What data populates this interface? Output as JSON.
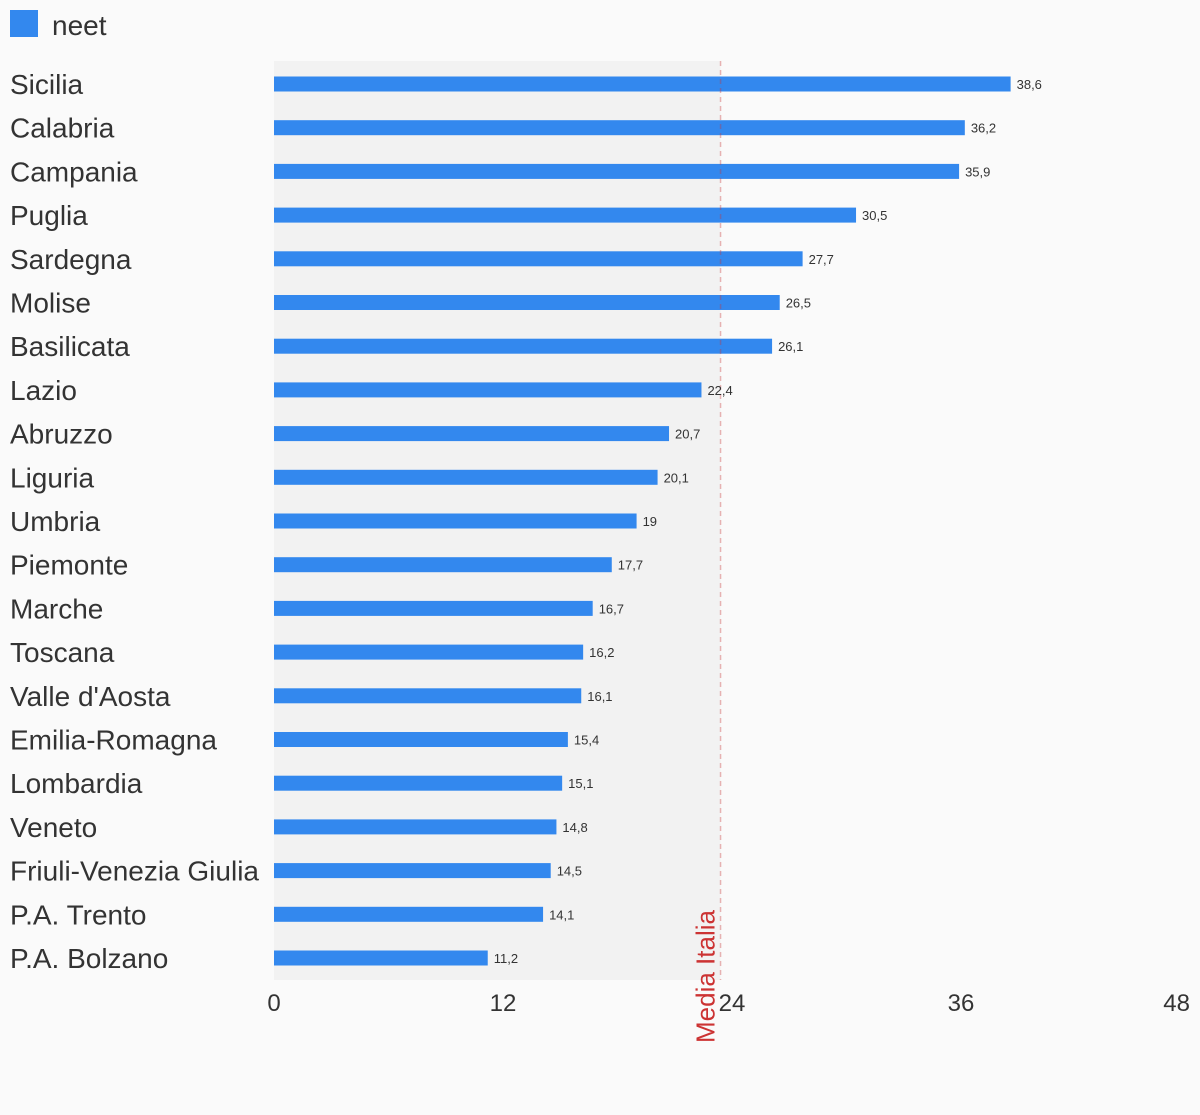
{
  "chart_data": {
    "type": "bar",
    "orientation": "horizontal",
    "categories": [
      "Sicilia",
      "Calabria",
      "Campania",
      "Puglia",
      "Sardegna",
      "Molise",
      "Basilicata",
      "Lazio",
      "Abruzzo",
      "Liguria",
      "Umbria",
      "Piemonte",
      "Marche",
      "Toscana",
      "Valle d'Aosta",
      "Emilia-Romagna",
      "Lombardia",
      "Veneto",
      "Friuli-Venezia Giulia",
      "P.A. Trento",
      "P.A. Bolzano"
    ],
    "series": [
      {
        "name": "neet",
        "color": "#3388ee",
        "values": [
          38.6,
          36.2,
          35.9,
          30.5,
          27.7,
          26.5,
          26.1,
          22.4,
          20.7,
          20.1,
          19,
          17.7,
          16.7,
          16.2,
          16.1,
          15.4,
          15.1,
          14.8,
          14.5,
          14.1,
          11.2
        ],
        "value_labels": [
          "38,6",
          "36,2",
          "35,9",
          "30,5",
          "27,7",
          "26,5",
          "26,1",
          "22,4",
          "20,7",
          "20,1",
          "19",
          "17,7",
          "16,7",
          "16,2",
          "16,1",
          "15,4",
          "15,1",
          "14,8",
          "14,5",
          "14,1",
          "11,2"
        ]
      }
    ],
    "x_ticks": [
      0,
      12,
      24,
      36,
      48
    ],
    "xlim": [
      0,
      48
    ],
    "legend_position": "top-left",
    "reference_line": {
      "label": "Media Italia",
      "value": 23.4,
      "color": "#cc3333",
      "band_color": "#f2f2f2"
    },
    "grid": false
  }
}
